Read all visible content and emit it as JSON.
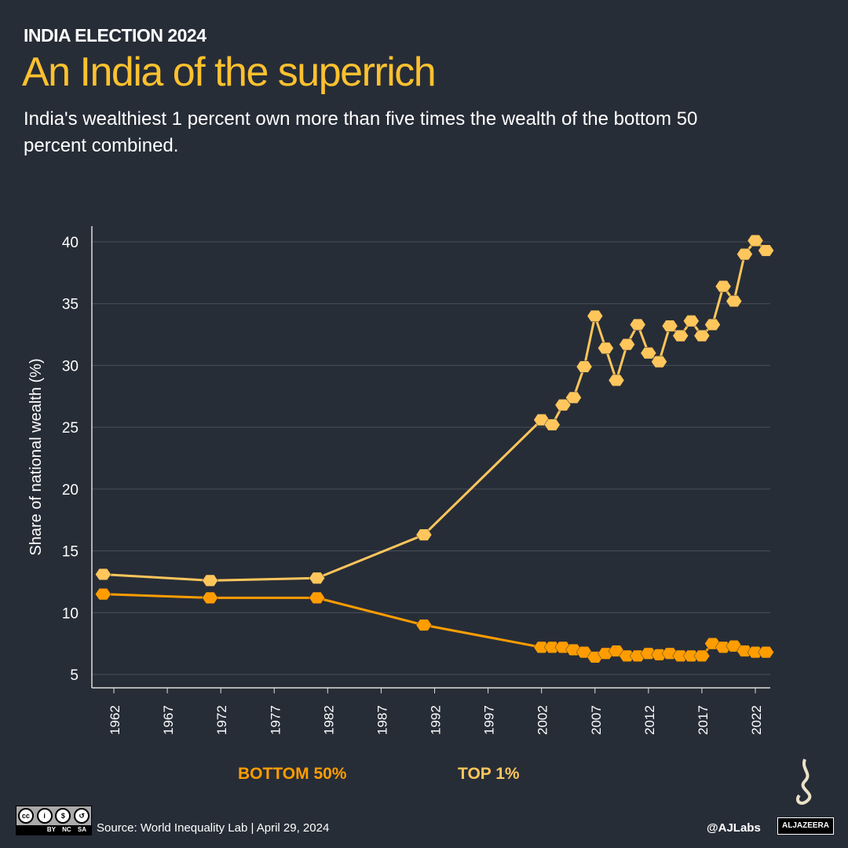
{
  "header": {
    "kicker": "INDIA ELECTION 2024",
    "title": "An India of the superrich",
    "subtitle": "India's wealthiest 1 percent own more than five times the wealth of the bottom 50 percent combined."
  },
  "chart_data": {
    "type": "line",
    "title": "",
    "xlabel": "",
    "ylabel": "Share of national wealth (%)",
    "ylim": [
      5,
      40
    ],
    "yticks": [
      5,
      10,
      15,
      20,
      25,
      30,
      35,
      40
    ],
    "xlim": [
      1961,
      2023
    ],
    "xticks": [
      1962,
      1967,
      1972,
      1977,
      1982,
      1987,
      1992,
      1997,
      2002,
      2007,
      2012,
      2017,
      2022
    ],
    "grid": true,
    "legend": "bottom",
    "x": [
      1961,
      1971,
      1981,
      1991,
      2002,
      2003,
      2004,
      2005,
      2006,
      2007,
      2008,
      2009,
      2010,
      2011,
      2012,
      2013,
      2014,
      2015,
      2016,
      2017,
      2018,
      2019,
      2020,
      2021,
      2022,
      2023
    ],
    "series": [
      {
        "name": "BOTTOM 50%",
        "color": "#ff9d00",
        "values": [
          11.5,
          11.2,
          11.2,
          9.0,
          7.2,
          7.2,
          7.2,
          7.0,
          6.8,
          6.4,
          6.7,
          6.9,
          6.5,
          6.5,
          6.7,
          6.6,
          6.7,
          6.5,
          6.5,
          6.5,
          7.5,
          7.2,
          7.3,
          6.9,
          6.8,
          6.8
        ]
      },
      {
        "name": "TOP 1%",
        "color": "#ffc65c",
        "values": [
          13.1,
          12.6,
          12.8,
          16.3,
          25.6,
          25.2,
          26.8,
          27.4,
          29.9,
          34.0,
          31.4,
          28.8,
          31.7,
          33.3,
          31.0,
          30.3,
          33.2,
          32.4,
          33.6,
          32.4,
          33.3,
          36.4,
          35.2,
          39.0,
          40.1,
          39.3
        ]
      }
    ]
  },
  "footer": {
    "source": "Source: World Inequality Lab  |  April 29, 2024",
    "handle": "@AJLabs",
    "license": "BY NC SA",
    "brand": "ALJAZEERA"
  }
}
